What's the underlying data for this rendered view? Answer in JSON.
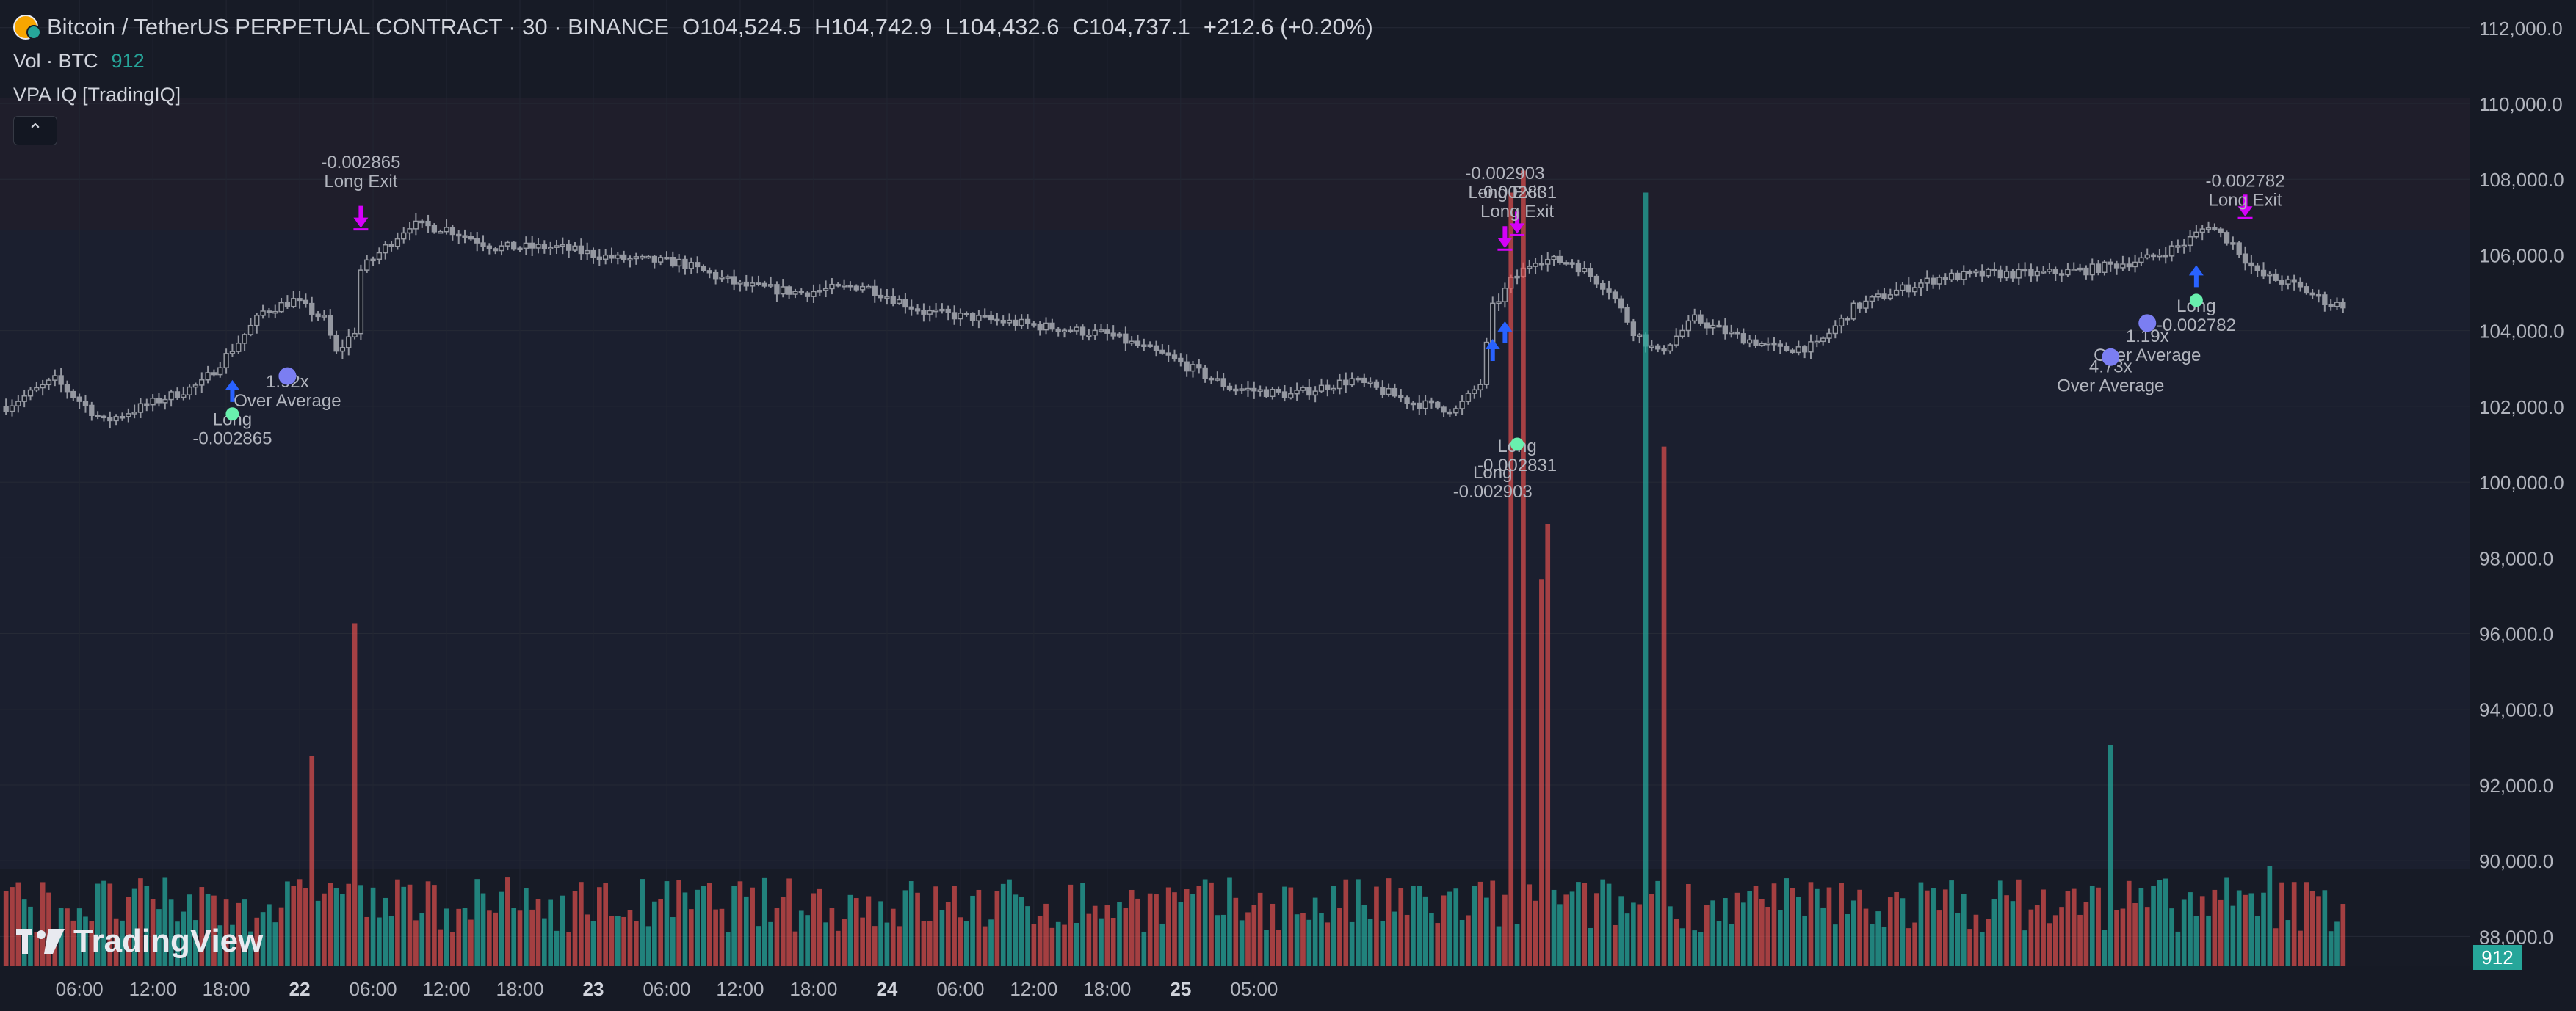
{
  "header": {
    "symbol": "Bitcoin / TetherUS PERPETUAL CONTRACT · 30 · BINANCE",
    "open_label": "O",
    "open": "104,524.5",
    "high_label": "H",
    "high": "104,742.9",
    "low_label": "L",
    "low": "104,432.6",
    "close_label": "C",
    "close": "104,737.1",
    "change": "+212.6 (+0.20%)"
  },
  "volume_legend": {
    "label": "Vol · BTC",
    "value": "912"
  },
  "indicator": {
    "label": "VPA IQ [TradingIQ]",
    "collapse_glyph": "⌃"
  },
  "watermark": "TradingView",
  "volume_tag": "912",
  "colors": {
    "up": "#26a69a",
    "down": "#ef5350",
    "signal_long": "#2962ff",
    "signal_exit": "#d500f9",
    "avg_dot": "#7b7ef2",
    "long_dot": "#69f0ae"
  },
  "price_axis": [
    "112,000.0",
    "110,000.0",
    "108,000.0",
    "106,000.0",
    "104,000.0",
    "102,000.0",
    "100,000.0",
    "98,000.0",
    "96,000.0",
    "94,000.0",
    "92,000.0",
    "90,000.0",
    "88,000.0"
  ],
  "time_axis": [
    {
      "label": "06:00",
      "bold": false
    },
    {
      "label": "12:00",
      "bold": false
    },
    {
      "label": "18:00",
      "bold": false
    },
    {
      "label": "22",
      "bold": true
    },
    {
      "label": "06:00",
      "bold": false
    },
    {
      "label": "12:00",
      "bold": false
    },
    {
      "label": "18:00",
      "bold": false
    },
    {
      "label": "23",
      "bold": true
    },
    {
      "label": "06:00",
      "bold": false
    },
    {
      "label": "12:00",
      "bold": false
    },
    {
      "label": "18:00",
      "bold": false
    },
    {
      "label": "24",
      "bold": true
    },
    {
      "label": "06:00",
      "bold": false
    },
    {
      "label": "12:00",
      "bold": false
    },
    {
      "label": "18:00",
      "bold": false
    },
    {
      "label": "25",
      "bold": true
    },
    {
      "label": "05:00",
      "bold": false
    }
  ],
  "annotations": [
    {
      "line1": "-0.002865",
      "line2": "Long Exit",
      "bar": 58,
      "price": 108300
    },
    {
      "line1": "-0.002903",
      "line2": "Long Exit",
      "bar": 245,
      "price": 108000
    },
    {
      "line1": "-0.002831",
      "line2": "Long Exit",
      "bar": 247,
      "price": 107500
    },
    {
      "line1": "-0.002782",
      "line2": "Long Exit",
      "bar": 366,
      "price": 107800
    },
    {
      "line1": "1.92x",
      "line2": "Over Average",
      "bar": 46,
      "price": 102500
    },
    {
      "line1": "4.73x",
      "line2": "Over Average",
      "bar": 344,
      "price": 102900
    },
    {
      "line1": "1.19x",
      "line2": "Over Average",
      "bar": 350,
      "price": 103700
    },
    {
      "line1": "Long",
      "line2": "-0.002865",
      "bar": 37,
      "price": 101500
    },
    {
      "line1": "Long",
      "line2": "-0.002831",
      "bar": 247,
      "price": 100800
    },
    {
      "line1": "Long",
      "line2": "-0.002903",
      "bar": 243,
      "price": 100100
    },
    {
      "line1": "Long",
      "line2": "-0.002782",
      "bar": 358,
      "price": 104500
    }
  ],
  "chart_data": {
    "type": "candlestick",
    "symbol": "Bitcoin / TetherUS PERPETUAL CONTRACT",
    "interval": "30",
    "exchange": "BINANCE",
    "ylim": [
      87000,
      112500
    ],
    "bars_visible": 383,
    "anchors": [
      [
        0,
        102000
      ],
      [
        8,
        102700
      ],
      [
        16,
        101600
      ],
      [
        24,
        102100
      ],
      [
        32,
        102600
      ],
      [
        38,
        103700
      ],
      [
        42,
        104500
      ],
      [
        47,
        104800
      ],
      [
        52,
        104300
      ],
      [
        54,
        103400
      ],
      [
        57,
        104000
      ],
      [
        58,
        105600
      ],
      [
        62,
        106200
      ],
      [
        66,
        106800
      ],
      [
        72,
        106700
      ],
      [
        80,
        106200
      ],
      [
        90,
        106200
      ],
      [
        100,
        105900
      ],
      [
        110,
        105800
      ],
      [
        120,
        105200
      ],
      [
        130,
        105000
      ],
      [
        140,
        105200
      ],
      [
        150,
        104500
      ],
      [
        160,
        104300
      ],
      [
        170,
        104100
      ],
      [
        180,
        103900
      ],
      [
        190,
        103300
      ],
      [
        200,
        102500
      ],
      [
        210,
        102300
      ],
      [
        220,
        102700
      ],
      [
        230,
        102100
      ],
      [
        237,
        101900
      ],
      [
        241,
        102600
      ],
      [
        243,
        104600
      ],
      [
        246,
        105300
      ],
      [
        250,
        105900
      ],
      [
        256,
        105800
      ],
      [
        262,
        105100
      ],
      [
        266,
        104000
      ],
      [
        270,
        103400
      ],
      [
        276,
        104300
      ],
      [
        282,
        103900
      ],
      [
        290,
        103500
      ],
      [
        296,
        103600
      ],
      [
        302,
        104600
      ],
      [
        308,
        105000
      ],
      [
        316,
        105400
      ],
      [
        324,
        105500
      ],
      [
        332,
        105500
      ],
      [
        340,
        105600
      ],
      [
        350,
        105900
      ],
      [
        356,
        106300
      ],
      [
        360,
        106800
      ],
      [
        364,
        106300
      ],
      [
        368,
        105500
      ],
      [
        374,
        105200
      ],
      [
        380,
        104700
      ]
    ],
    "volume_spikes": [
      [
        50,
        19
      ],
      [
        57,
        31
      ],
      [
        246,
        70
      ],
      [
        248,
        72
      ],
      [
        251,
        35
      ],
      [
        252,
        40
      ],
      [
        268,
        70
      ],
      [
        271,
        47
      ],
      [
        344,
        20
      ],
      [
        370,
        9
      ]
    ],
    "signals_long": [
      37,
      243,
      245,
      358
    ],
    "signals_exit": [
      58,
      245,
      247,
      366
    ]
  }
}
